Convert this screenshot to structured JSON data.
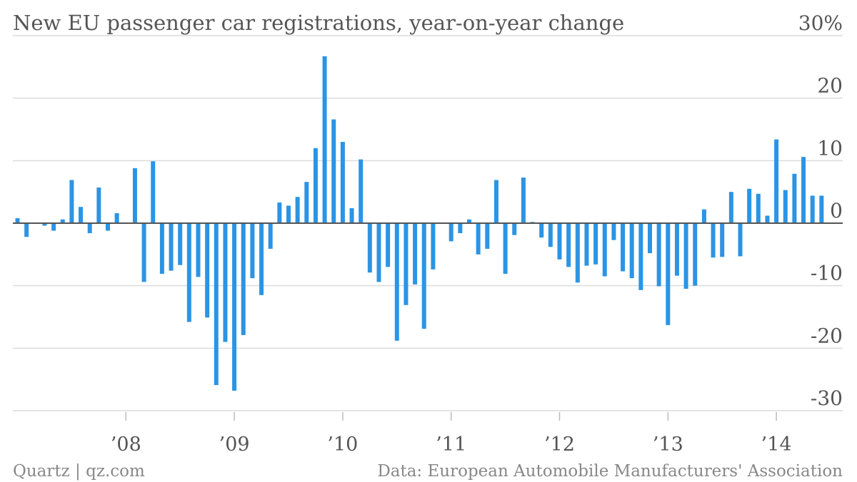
{
  "header": {
    "title": "New EU passenger car registrations, year-on-year change"
  },
  "footer": {
    "left": "Quartz | qz.com",
    "right": "Data: European Automobile Manufacturers' Association"
  },
  "chart_data": {
    "type": "bar",
    "title": "New EU passenger car registrations, year-on-year change",
    "xlabel": "",
    "ylabel": "",
    "unit": "%",
    "ylim": [
      -30,
      30
    ],
    "y_ticks": [
      {
        "value": 30,
        "label": "30%"
      },
      {
        "value": 20,
        "label": "20"
      },
      {
        "value": 10,
        "label": "10"
      },
      {
        "value": 0,
        "label": "0"
      },
      {
        "value": -10,
        "label": "-10"
      },
      {
        "value": -20,
        "label": "-20"
      },
      {
        "value": -30,
        "label": "-30"
      }
    ],
    "x_ticks": [
      {
        "date": "2008-01",
        "label": "’08"
      },
      {
        "date": "2009-01",
        "label": "’09"
      },
      {
        "date": "2010-01",
        "label": "’10"
      },
      {
        "date": "2011-01",
        "label": "’11"
      },
      {
        "date": "2012-01",
        "label": "’12"
      },
      {
        "date": "2013-01",
        "label": "’13"
      },
      {
        "date": "2014-01",
        "label": "’14"
      }
    ],
    "grid": true,
    "color": "#2b94e4",
    "x_start": "2007-01",
    "categories": [
      "2007-01",
      "2007-02",
      "2007-03",
      "2007-04",
      "2007-05",
      "2007-06",
      "2007-07",
      "2007-08",
      "2007-09",
      "2007-10",
      "2007-11",
      "2007-12",
      "2008-01",
      "2008-02",
      "2008-03",
      "2008-04",
      "2008-05",
      "2008-06",
      "2008-07",
      "2008-08",
      "2008-09",
      "2008-10",
      "2008-11",
      "2008-12",
      "2009-01",
      "2009-02",
      "2009-03",
      "2009-04",
      "2009-05",
      "2009-06",
      "2009-07",
      "2009-08",
      "2009-09",
      "2009-10",
      "2009-11",
      "2009-12",
      "2010-01",
      "2010-02",
      "2010-03",
      "2010-04",
      "2010-05",
      "2010-06",
      "2010-07",
      "2010-08",
      "2010-09",
      "2010-10",
      "2010-11",
      "2010-12",
      "2011-01",
      "2011-02",
      "2011-03",
      "2011-04",
      "2011-05",
      "2011-06",
      "2011-07",
      "2011-08",
      "2011-09",
      "2011-10",
      "2011-11",
      "2011-12",
      "2012-01",
      "2012-02",
      "2012-03",
      "2012-04",
      "2012-05",
      "2012-06",
      "2012-07",
      "2012-08",
      "2012-09",
      "2012-10",
      "2012-11",
      "2012-12",
      "2013-01",
      "2013-02",
      "2013-03",
      "2013-04",
      "2013-05",
      "2013-06",
      "2013-07",
      "2013-08",
      "2013-09",
      "2013-10",
      "2013-11",
      "2013-12",
      "2014-01",
      "2014-02",
      "2014-03",
      "2014-04",
      "2014-05",
      "2014-06"
    ],
    "values": [
      0.8,
      -2.2,
      0.1,
      -0.4,
      -1.2,
      0.6,
      6.9,
      2.6,
      -1.6,
      5.7,
      -1.2,
      1.6,
      0.0,
      8.8,
      -9.4,
      9.9,
      -8.1,
      -7.6,
      -6.7,
      -15.8,
      -8.6,
      -15.1,
      -25.9,
      -19.0,
      -26.8,
      -17.9,
      -8.8,
      -11.5,
      -4.1,
      3.3,
      2.8,
      4.2,
      6.6,
      12.0,
      26.7,
      16.6,
      13.0,
      2.4,
      10.2,
      -7.9,
      -9.4,
      -7.0,
      -18.8,
      -13.1,
      -9.8,
      -16.9,
      -7.4,
      0.0,
      -2.9,
      -1.6,
      0.6,
      -5.0,
      -4.1,
      6.9,
      -8.1,
      -1.9,
      7.3,
      0.2,
      -2.3,
      -3.8,
      -5.8,
      -7.0,
      -9.5,
      -6.8,
      -6.6,
      -8.5,
      -2.7,
      -7.7,
      -8.8,
      -10.7,
      -4.8,
      -10.1,
      -16.3,
      -8.4,
      -10.5,
      -10.0,
      2.2,
      -5.5,
      -5.4,
      5.0,
      -5.3,
      5.5,
      4.7,
      1.2,
      13.4,
      5.3,
      7.9,
      10.6,
      4.4,
      4.4
    ]
  }
}
